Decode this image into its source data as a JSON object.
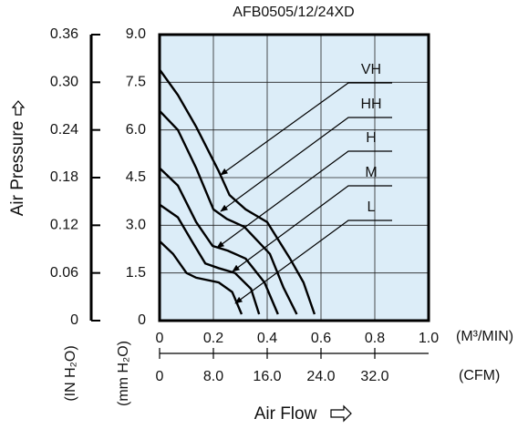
{
  "chart_data": {
    "type": "line",
    "title": "AFB0505/12/24XD",
    "y_label": "Air Pressure",
    "y2_label": "(IN H₂O)",
    "y_unit_label": "(mm H₂O)",
    "x_label": "Air Flow",
    "x_unit_label": "(M³/MIN)",
    "x2_unit_label": "(CFM)",
    "xlim": [
      0,
      1.0
    ],
    "xticks": [
      0,
      0.2,
      0.4,
      0.6,
      0.8,
      {
        "value": 1.0,
        "label": "1.0"
      }
    ],
    "x2lim": [
      0,
      40
    ],
    "x2ticks": [
      0,
      {
        "value": 8,
        "label": "8.0"
      },
      {
        "value": 16,
        "label": "16.0"
      },
      {
        "value": 24,
        "label": "24.0"
      },
      {
        "value": 32,
        "label": "32.0"
      }
    ],
    "ylim": [
      0,
      9.0
    ],
    "yticks": [
      0,
      1.5,
      {
        "value": 3,
        "label": "3.0"
      },
      4.5,
      {
        "value": 6,
        "label": "6.0"
      },
      7.5,
      {
        "value": 9,
        "label": "9.0"
      }
    ],
    "y2lim": [
      0,
      0.36
    ],
    "y2ticks": [
      0,
      0.06,
      0.12,
      0.18,
      0.24,
      {
        "value": 0.3,
        "label": "0.30"
      },
      0.36
    ],
    "grid": true,
    "plot_background": "#dcedf8",
    "series": [
      {
        "name": "VH",
        "color": "#000000",
        "x": [
          0,
          0.068,
          0.136,
          0.22,
          0.26,
          0.32,
          0.4,
          0.485,
          0.535,
          0.576
        ],
        "values": [
          7.9,
          7.1,
          6.1,
          4.7,
          3.95,
          3.5,
          3.1,
          1.95,
          1.2,
          0.2
        ]
      },
      {
        "name": "HH",
        "color": "#000000",
        "x": [
          0,
          0.068,
          0.136,
          0.2,
          0.25,
          0.315,
          0.41,
          0.46,
          0.51
        ],
        "values": [
          6.6,
          6.0,
          4.8,
          3.5,
          3.2,
          2.95,
          2.1,
          1.05,
          0.2
        ]
      },
      {
        "name": "H",
        "color": "#000000",
        "x": [
          0,
          0.068,
          0.136,
          0.197,
          0.254,
          0.32,
          0.39,
          0.44
        ],
        "values": [
          4.8,
          4.25,
          3.1,
          2.35,
          2.2,
          1.95,
          1.2,
          0.2
        ]
      },
      {
        "name": "M",
        "color": "#000000",
        "x": [
          0,
          0.068,
          0.12,
          0.17,
          0.22,
          0.28,
          0.34,
          0.37
        ],
        "values": [
          3.65,
          3.25,
          2.5,
          1.8,
          1.65,
          1.5,
          1.0,
          0.2
        ]
      },
      {
        "name": "L",
        "color": "#000000",
        "x": [
          0,
          0.05,
          0.1,
          0.136,
          0.22,
          0.27,
          0.305
        ],
        "values": [
          2.5,
          2.1,
          1.5,
          1.35,
          1.2,
          0.9,
          0.2
        ]
      }
    ]
  }
}
